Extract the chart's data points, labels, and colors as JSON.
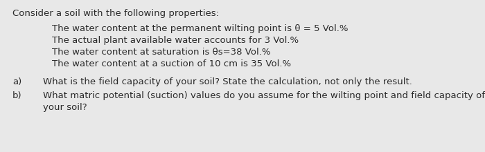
{
  "background_color": "#e8e8e8",
  "font_size": 9.5,
  "font_color": "#2a2a2a",
  "title_text": "Consider a soil with the following properties:",
  "bullets": [
    "The water content at the permanent wilting point is θ = 5 Vol.%",
    "The actual plant available water accounts for 3 Vol.%",
    "The water content at saturation is θs=38 Vol.%",
    "The water content at a suction of 10 cm is 35 Vol.%"
  ],
  "qa_items": [
    {
      "label": "a)",
      "text": "What is the field capacity of your soil? State the calculation, not only the result."
    },
    {
      "label": "b)",
      "text": "What matric potential (suction) values do you assume for the wilting point and field capacity of",
      "text2": "your soil?"
    }
  ]
}
